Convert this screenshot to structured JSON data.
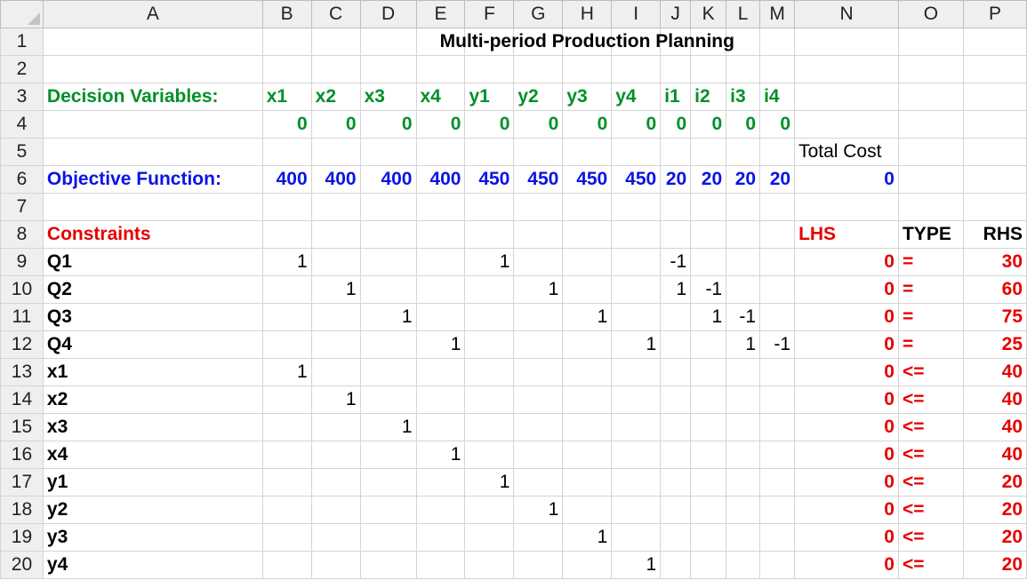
{
  "columns": [
    "A",
    "B",
    "C",
    "D",
    "E",
    "F",
    "G",
    "H",
    "I",
    "J",
    "K",
    "L",
    "M",
    "N",
    "O",
    "P"
  ],
  "rows": [
    "1",
    "2",
    "3",
    "4",
    "5",
    "6",
    "7",
    "8",
    "9",
    "10",
    "11",
    "12",
    "13",
    "14",
    "15",
    "16",
    "17",
    "18",
    "19",
    "20"
  ],
  "title": "Multi-period Production Planning",
  "labels": {
    "decision_variables": "Decision Variables:",
    "objective_function": "Objective Function:",
    "constraints": "Constraints",
    "total_cost": "Total Cost",
    "lhs": "LHS",
    "type": "TYPE",
    "rhs": "RHS"
  },
  "variable_names": [
    "x1",
    "x2",
    "x3",
    "x4",
    "y1",
    "y2",
    "y3",
    "y4",
    "i1",
    "i2",
    "i3",
    "i4"
  ],
  "variable_values": [
    "0",
    "0",
    "0",
    "0",
    "0",
    "0",
    "0",
    "0",
    "0",
    "0",
    "0",
    "0"
  ],
  "objective_coefficients": [
    "400",
    "400",
    "400",
    "400",
    "450",
    "450",
    "450",
    "450",
    "20",
    "20",
    "20",
    "20"
  ],
  "total_cost_value": "0",
  "constraints": [
    {
      "name": "Q1",
      "coef": [
        "1",
        "",
        "",
        "",
        "1",
        "",
        "",
        "",
        "-1",
        "",
        "",
        ""
      ],
      "lhs": "0",
      "type": "=",
      "rhs": "30"
    },
    {
      "name": "Q2",
      "coef": [
        "",
        "1",
        "",
        "",
        "",
        "1",
        "",
        "",
        "1",
        "-1",
        "",
        ""
      ],
      "lhs": "0",
      "type": "=",
      "rhs": "60"
    },
    {
      "name": "Q3",
      "coef": [
        "",
        "",
        "1",
        "",
        "",
        "",
        "1",
        "",
        "",
        "1",
        "-1",
        ""
      ],
      "lhs": "0",
      "type": "=",
      "rhs": "75"
    },
    {
      "name": "Q4",
      "coef": [
        "",
        "",
        "",
        "1",
        "",
        "",
        "",
        "1",
        "",
        "",
        "1",
        "-1"
      ],
      "lhs": "0",
      "type": "=",
      "rhs": "25"
    },
    {
      "name": "x1",
      "coef": [
        "1",
        "",
        "",
        "",
        "",
        "",
        "",
        "",
        "",
        "",
        "",
        ""
      ],
      "lhs": "0",
      "type": "<=",
      "rhs": "40"
    },
    {
      "name": "x2",
      "coef": [
        "",
        "1",
        "",
        "",
        "",
        "",
        "",
        "",
        "",
        "",
        "",
        ""
      ],
      "lhs": "0",
      "type": "<=",
      "rhs": "40"
    },
    {
      "name": "x3",
      "coef": [
        "",
        "",
        "1",
        "",
        "",
        "",
        "",
        "",
        "",
        "",
        "",
        ""
      ],
      "lhs": "0",
      "type": "<=",
      "rhs": "40"
    },
    {
      "name": "x4",
      "coef": [
        "",
        "",
        "",
        "1",
        "",
        "",
        "",
        "",
        "",
        "",
        "",
        ""
      ],
      "lhs": "0",
      "type": "<=",
      "rhs": "40"
    },
    {
      "name": "y1",
      "coef": [
        "",
        "",
        "",
        "",
        "1",
        "",
        "",
        "",
        "",
        "",
        "",
        ""
      ],
      "lhs": "0",
      "type": "<=",
      "rhs": "20"
    },
    {
      "name": "y2",
      "coef": [
        "",
        "",
        "",
        "",
        "",
        "1",
        "",
        "",
        "",
        "",
        "",
        ""
      ],
      "lhs": "0",
      "type": "<=",
      "rhs": "20"
    },
    {
      "name": "y3",
      "coef": [
        "",
        "",
        "",
        "",
        "",
        "",
        "1",
        "",
        "",
        "",
        "",
        ""
      ],
      "lhs": "0",
      "type": "<=",
      "rhs": "20"
    },
    {
      "name": "y4",
      "coef": [
        "",
        "",
        "",
        "",
        "",
        "",
        "",
        "1",
        "",
        "",
        "",
        ""
      ],
      "lhs": "0",
      "type": "<=",
      "rhs": "20"
    }
  ],
  "colors": {
    "green": "#00902a",
    "blue": "#0a14e6",
    "red": "#e60000",
    "header_bg": "#efefef",
    "gridline": "#d4d4d4"
  }
}
